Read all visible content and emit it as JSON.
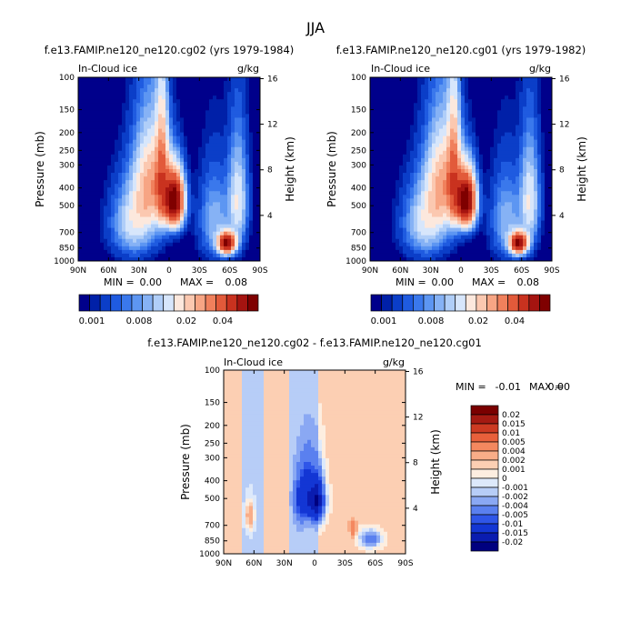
{
  "figure": {
    "title": "JJA"
  },
  "palette_main": [
    "#00008b",
    "#0020a8",
    "#0b3ec8",
    "#1f5be0",
    "#3a78ec",
    "#5d96f2",
    "#86b2f5",
    "#b0cef8",
    "#d7e6fb",
    "#fce8dd",
    "#fbc8b0",
    "#f7a584",
    "#f0805c",
    "#e25a3a",
    "#c9321f",
    "#a51410",
    "#7f0000"
  ],
  "palette_diff": [
    "#00007f",
    "#0a1cb0",
    "#1336d4",
    "#2f56e8",
    "#5a80ef",
    "#8aa8f3",
    "#b7cdf7",
    "#dde9fb",
    "#fdeee0",
    "#fccfb3",
    "#f9ad88",
    "#f4885f",
    "#e8603b",
    "#cc3a22",
    "#a41a12",
    "#7a0000"
  ],
  "chart_data": [
    {
      "type": "heatmap",
      "title": "f.e13.FAMIP.ne120_ne120.cg02 (yrs 1979-1984)",
      "field_label": "In-Cloud ice",
      "units": "g/kg",
      "ylabel": "Pressure (mb)",
      "ylabel_right": "Height (km)",
      "x_ticks": [
        "90N",
        "60N",
        "30N",
        "0",
        "30S",
        "60S",
        "90S"
      ],
      "y_ticks": [
        "100",
        "150",
        "200",
        "250",
        "300",
        "400",
        "500",
        "700",
        "850",
        "1000"
      ],
      "y_ticks_right": [
        "16",
        "12",
        "8",
        "4"
      ],
      "min_label": "MIN =",
      "min_value": "0.00",
      "max_label": "MAX =",
      "max_value": "0.08",
      "colorbar_labels": [
        "0.001",
        "0.008",
        "0.02",
        "0.04"
      ],
      "blobs": [
        {
          "lat": -5,
          "p": 470,
          "amp": 0.08,
          "slat": 9,
          "sp": 150
        },
        {
          "lat": 7,
          "p": 330,
          "amp": 0.028,
          "slat": 6,
          "sp": 260
        },
        {
          "lat": 18,
          "p": 380,
          "amp": 0.03,
          "slat": 16,
          "sp": 230
        },
        {
          "lat": 35,
          "p": 620,
          "amp": 0.018,
          "slat": 20,
          "sp": 260
        },
        {
          "lat": -57,
          "p": 800,
          "amp": 0.07,
          "slat": 8,
          "sp": 100
        },
        {
          "lat": -68,
          "p": 470,
          "amp": 0.02,
          "slat": 9,
          "sp": 280
        },
        {
          "lat": -45,
          "p": 600,
          "amp": 0.012,
          "slat": 14,
          "sp": 300
        }
      ]
    },
    {
      "type": "heatmap",
      "title": "f.e13.FAMIP.ne120_ne120.cg01 (yrs 1979-1982)",
      "field_label": "In-Cloud ice",
      "units": "g/kg",
      "ylabel": "Pressure (mb)",
      "ylabel_right": "Height (km)",
      "x_ticks": [
        "90N",
        "60N",
        "30N",
        "0",
        "30S",
        "60S",
        "90S"
      ],
      "y_ticks": [
        "100",
        "150",
        "200",
        "250",
        "300",
        "400",
        "500",
        "700",
        "850",
        "1000"
      ],
      "y_ticks_right": [
        "16",
        "12",
        "8",
        "4"
      ],
      "min_label": "MIN =",
      "min_value": "0.00",
      "max_label": "MAX =",
      "max_value": "0.08",
      "colorbar_labels": [
        "0.001",
        "0.008",
        "0.02",
        "0.04"
      ],
      "blobs": [
        {
          "lat": -5,
          "p": 470,
          "amp": 0.08,
          "slat": 9,
          "sp": 150
        },
        {
          "lat": 7,
          "p": 330,
          "amp": 0.028,
          "slat": 6,
          "sp": 260
        },
        {
          "lat": 18,
          "p": 380,
          "amp": 0.03,
          "slat": 16,
          "sp": 230
        },
        {
          "lat": 35,
          "p": 620,
          "amp": 0.018,
          "slat": 20,
          "sp": 260
        },
        {
          "lat": -57,
          "p": 800,
          "amp": 0.07,
          "slat": 8,
          "sp": 100
        },
        {
          "lat": -68,
          "p": 470,
          "amp": 0.02,
          "slat": 9,
          "sp": 280
        },
        {
          "lat": -45,
          "p": 600,
          "amp": 0.012,
          "slat": 14,
          "sp": 300
        }
      ]
    },
    {
      "type": "heatmap",
      "title": "f.e13.FAMIP.ne120_ne120.cg02 - f.e13.FAMIP.ne120_ne120.cg01",
      "field_label": "In-Cloud ice",
      "units": "g/kg",
      "ylabel": "Pressure (mb)",
      "ylabel_right": "Height (km)",
      "x_ticks": [
        "90N",
        "60N",
        "30N",
        "0",
        "30S",
        "60S",
        "90S"
      ],
      "y_ticks": [
        "100",
        "150",
        "200",
        "250",
        "300",
        "400",
        "500",
        "700",
        "850",
        "1000"
      ],
      "y_ticks_right": [
        "16",
        "12",
        "8",
        "4"
      ],
      "min_label": "MIN =",
      "min_value": "-0.01",
      "max_label": "MAX =",
      "max_value": "0.00",
      "colorbar_labels": [
        "0.02",
        "0.015",
        "0.01",
        "0.005",
        "0.004",
        "0.002",
        "0.001",
        "0",
        "-0.001",
        "-0.002",
        "-0.004",
        "-0.005",
        "-0.01",
        "-0.015",
        "-0.02"
      ],
      "background": [
        {
          "from": 90,
          "to": 72,
          "value": 0.0006
        },
        {
          "from": 72,
          "to": 52,
          "value": -0.0006
        },
        {
          "from": 52,
          "to": 27,
          "value": 0.0006
        },
        {
          "from": 27,
          "to": -2,
          "value": -0.0006
        },
        {
          "from": -2,
          "to": -90,
          "value": 0.0006
        }
      ],
      "blobs": [
        {
          "lat": 0,
          "p": 520,
          "amp": -0.012,
          "slat": 8,
          "sp": 110
        },
        {
          "lat": 6,
          "p": 400,
          "amp": -0.004,
          "slat": 7,
          "sp": 150
        },
        {
          "lat": 14,
          "p": 500,
          "amp": -0.005,
          "slat": 6,
          "sp": 160
        },
        {
          "lat": -4,
          "p": 480,
          "amp": -0.004,
          "slat": 5,
          "sp": 170
        },
        {
          "lat": -55,
          "p": 830,
          "amp": -0.004,
          "slat": 9,
          "sp": 80
        },
        {
          "lat": 64,
          "p": 620,
          "amp": 0.0025,
          "slat": 4,
          "sp": 110
        },
        {
          "lat": -38,
          "p": 720,
          "amp": 0.003,
          "slat": 3,
          "sp": 70
        }
      ]
    }
  ]
}
